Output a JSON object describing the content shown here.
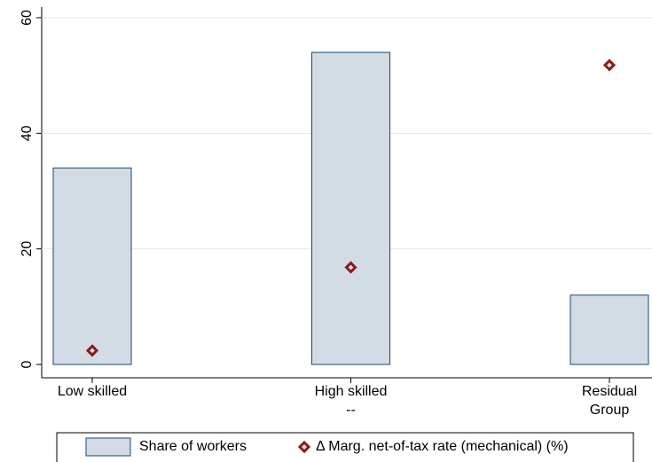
{
  "chart_data": {
    "type": "bar",
    "categories": [
      [
        "Low skilled"
      ],
      [
        "High skilled",
        "--"
      ],
      [
        "Residual",
        "Group"
      ]
    ],
    "series": [
      {
        "name": "Share of workers",
        "color": "#d3dbe4",
        "values": [
          34,
          54,
          12
        ]
      },
      {
        "name": "Δ Marg. net-of-tax rate (mechanical) (%)",
        "color": "#8b1a1a",
        "type": "scatter",
        "values": [
          2.4,
          16.8,
          51.8
        ]
      }
    ],
    "ylim": [
      0,
      60
    ],
    "yticks": [
      0,
      20,
      40,
      60
    ],
    "grid": true,
    "legend": "bottom"
  }
}
